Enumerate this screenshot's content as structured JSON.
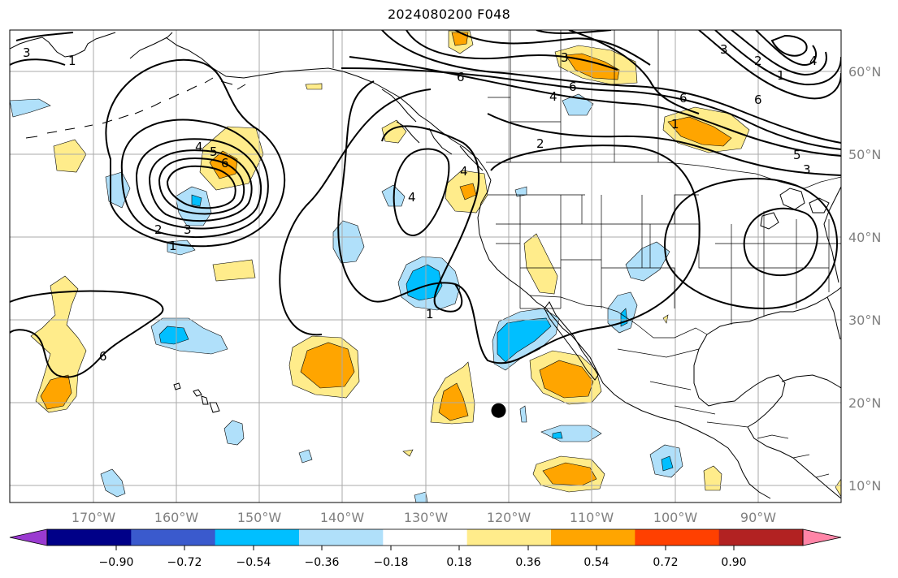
{
  "title": "2024080200 F048",
  "colors": {
    "background": "#ffffff",
    "gridline": "#aaaaaa",
    "coast": "#000000",
    "contour": "#000000",
    "tick_label": "#808080",
    "storm_marker": "#000000"
  },
  "chart_data": {
    "type": "map",
    "projection": "PlateCarree",
    "lon_range": [
      -180,
      -80
    ],
    "lat_range": [
      8,
      65
    ],
    "lon_ticks": [
      "170°W",
      "160°W",
      "150°W",
      "140°W",
      "130°W",
      "120°W",
      "110°W",
      "100°W",
      "90°W"
    ],
    "lat_ticks": [
      "60°N",
      "50°N",
      "40°N",
      "30°N",
      "20°N",
      "10°N"
    ],
    "colorbar": {
      "extend": "both",
      "bins": [
        "#9a3ad0",
        "#000088",
        "#3a5acd",
        "#00bfff",
        "#b0e0fa",
        "#ffffff",
        "#ffec8b",
        "#ffa500",
        "#ff4000",
        "#b22222",
        "#ff85a7"
      ],
      "tick_labels": [
        "−0.90",
        "−0.72",
        "−0.54",
        "−0.36",
        "−0.18",
        "0.18",
        "0.36",
        "0.54",
        "0.72",
        "0.90"
      ]
    },
    "contour_labels": [
      "3",
      "1",
      "2",
      "4",
      "6",
      "5",
      "3",
      "2",
      "1",
      "4",
      "6",
      "2",
      "1",
      "5",
      "3",
      "1",
      "1",
      "1",
      "6",
      "4",
      "6",
      "3",
      "2",
      "1"
    ],
    "storm_marker": {
      "lon": -121.2,
      "lat": 19.1
    }
  }
}
